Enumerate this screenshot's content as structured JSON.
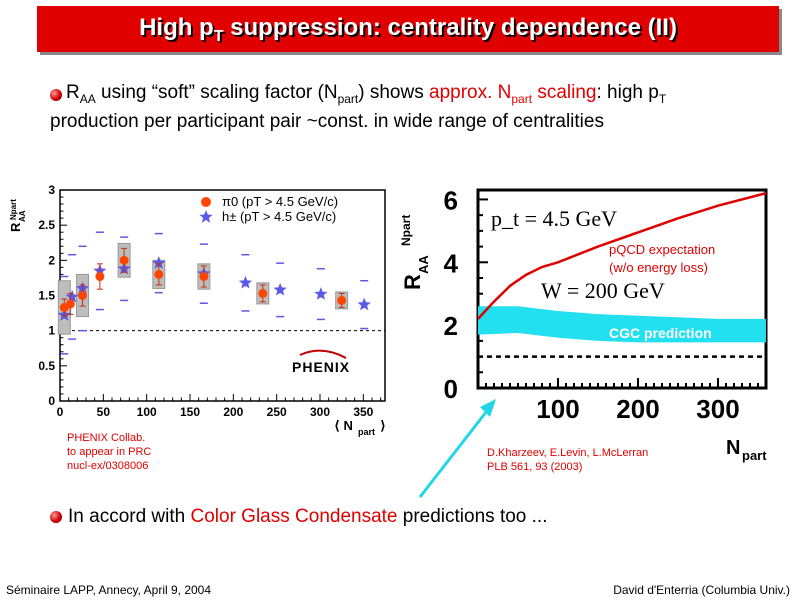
{
  "title": {
    "main": "High p",
    "sub": "T",
    "rest": " suppression: centrality dependence (II)"
  },
  "bullet1": {
    "raa": "R",
    "raa_sub": "AA",
    "text_a": " using “soft” scaling factor (N",
    "npart_sub": "part",
    "text_b": ") shows ",
    "red_a": "approx. N",
    "red_sub": "part",
    "red_b": " scaling",
    "text_c": ": high p",
    "pt_sub": "T",
    "line2": "production per participant pair ~const. in wide range of centralities"
  },
  "bullet2": {
    "pre": "In accord with ",
    "red": "Color Glass Condensate",
    "post": " predictions too ..."
  },
  "footer": {
    "left": "Séminaire LAPP, Annecy, April 9, 2004",
    "right": "David d'Enterria (Columbia Univ.)"
  },
  "left_cite": [
    "PHENIX Collab.",
    "to appear in PRC",
    "nucl-ex/0308006"
  ],
  "right_cite": [
    "D.Kharzeev, E.Levin, L.McLerran",
    "PLB 561, 93 (2003)"
  ],
  "colors": {
    "accent": "#e00000",
    "pi0": "#ff4500",
    "hpm": "#5a5ae6",
    "cgc": "#22e0f0",
    "arrow": "#22d6e8"
  },
  "chart_data": [
    {
      "type": "scatter",
      "ylabel": "R_AA^Npart",
      "xlabel": "⟨ N_part ⟩",
      "xlim": [
        0,
        375
      ],
      "ylim": [
        0,
        3
      ],
      "xticks": [
        "0",
        "50",
        "100",
        "150",
        "200",
        "250",
        "300",
        "350"
      ],
      "yticks": [
        "0",
        "0.5",
        "1",
        "1.5",
        "2",
        "2.5",
        "3"
      ],
      "legend_position": "top-right",
      "reference_line": 1,
      "logo": "PHENIX",
      "series": [
        {
          "name": "π0 (pT > 4.5 GeV/c)",
          "marker": "circle",
          "x": [
            5,
            12,
            26,
            46,
            74,
            114,
            166,
            234,
            325
          ],
          "y": [
            1.33,
            1.38,
            1.5,
            1.77,
            2.0,
            1.8,
            1.77,
            1.53,
            1.43
          ],
          "err": [
            0.12,
            0.15,
            0.15,
            0.18,
            0.17,
            0.15,
            0.15,
            0.12,
            0.1
          ]
        },
        {
          "name": "h± (pT > 4.5 GeV/c)",
          "marker": "star",
          "x": [
            5,
            14,
            26,
            46,
            74,
            114,
            166,
            214,
            254,
            301,
            351
          ],
          "y": [
            1.22,
            1.48,
            1.6,
            1.85,
            1.88,
            1.96,
            1.81,
            1.68,
            1.58,
            1.52,
            1.37
          ],
          "err": [
            0.05,
            0.05,
            0.05,
            0.05,
            0.05,
            0.05,
            0.05,
            0.05,
            0.05,
            0.05,
            0.05
          ]
        }
      ],
      "sys_boxes": {
        "x": [
          5,
          26,
          74,
          114,
          166,
          234,
          325
        ],
        "half_height": [
          0.38,
          0.3,
          0.24,
          0.2,
          0.18,
          0.15,
          0.12
        ]
      },
      "outer_ticks": {
        "x": [
          5,
          14,
          26,
          46,
          74,
          114,
          166,
          214,
          254,
          301,
          351
        ],
        "half_height": [
          0.55,
          0.6,
          0.6,
          0.55,
          0.45,
          0.42,
          0.42,
          0.4,
          0.38,
          0.36,
          0.34
        ]
      }
    },
    {
      "type": "line",
      "ylabel": "R_AA^Npart",
      "xlabel": "N_part",
      "xlim": [
        0,
        360
      ],
      "ylim": [
        0,
        6.3
      ],
      "xticks": [
        "100",
        "200",
        "300"
      ],
      "yticks": [
        "0",
        "2",
        "4",
        "6"
      ],
      "annotations": [
        "p_t = 4.5 GeV",
        "W = 200 GeV",
        "pQCD expectation",
        "(w/o energy loss)",
        "CGC prediction"
      ],
      "reference_line": 1.0,
      "series": [
        {
          "name": "pQCD expectation",
          "x": [
            0,
            20,
            40,
            60,
            80,
            100,
            150,
            200,
            250,
            300,
            360
          ],
          "y": [
            2.2,
            2.75,
            3.25,
            3.6,
            3.85,
            4.0,
            4.5,
            4.95,
            5.4,
            5.8,
            6.2
          ]
        },
        {
          "name": "CGC prediction",
          "band": true,
          "x": [
            0,
            50,
            100,
            150,
            200,
            250,
            300,
            360
          ],
          "y_low": [
            1.7,
            1.75,
            1.6,
            1.5,
            1.45,
            1.45,
            1.45,
            1.45
          ],
          "y_high": [
            2.6,
            2.6,
            2.45,
            2.35,
            2.3,
            2.25,
            2.2,
            2.2
          ]
        }
      ]
    }
  ]
}
